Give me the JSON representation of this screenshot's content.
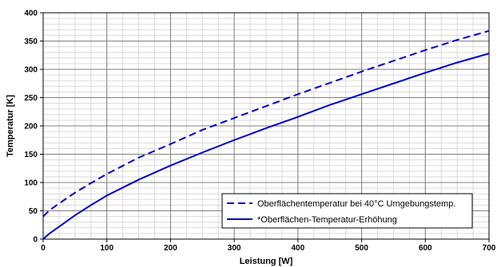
{
  "chart_data": {
    "type": "line",
    "title": "",
    "xlabel": "Leistung  [W]",
    "ylabel": "Temperatur  [K]",
    "xlim": [
      0,
      700
    ],
    "ylim": [
      0,
      400
    ],
    "x_ticks": [
      0,
      100,
      200,
      300,
      400,
      500,
      600,
      700
    ],
    "y_ticks": [
      0,
      50,
      100,
      150,
      200,
      250,
      300,
      350,
      400
    ],
    "x_tick_labels": [
      "0",
      "100",
      "200",
      "300",
      "400",
      "500",
      "600",
      "700"
    ],
    "y_tick_labels": [
      "0",
      "50",
      "100",
      "150",
      "200",
      "250",
      "300",
      "350",
      "400"
    ],
    "grid": true,
    "legend_position": "bottom-right",
    "series": [
      {
        "name": "Oberflächentemperatur bei 40°C Umgebungstemp.",
        "style": "dashed",
        "color": "#0000cc",
        "x": [
          0,
          10,
          25,
          50,
          75,
          100,
          150,
          200,
          250,
          300,
          350,
          400,
          450,
          500,
          550,
          600,
          650,
          700
        ],
        "y": [
          40,
          51,
          63,
          82,
          99,
          115,
          144,
          168,
          193,
          214,
          235,
          256,
          276,
          296,
          315,
          334,
          352,
          368
        ]
      },
      {
        "name": "*Oberflächen-Temperatur-Erhöhung",
        "style": "solid",
        "color": "#0000cc",
        "x": [
          0,
          10,
          25,
          50,
          75,
          100,
          150,
          200,
          250,
          300,
          350,
          400,
          450,
          500,
          550,
          600,
          650,
          700
        ],
        "y": [
          0,
          10,
          22,
          42,
          60,
          77,
          105,
          130,
          153,
          175,
          196,
          216,
          237,
          256,
          275,
          294,
          312,
          328
        ]
      }
    ]
  }
}
